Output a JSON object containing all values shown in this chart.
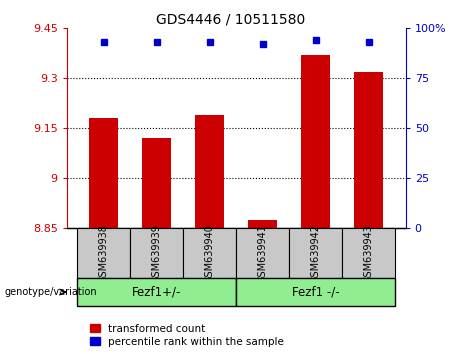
{
  "title": "GDS4446 / 10511580",
  "categories": [
    "GSM639938",
    "GSM639939",
    "GSM639940",
    "GSM639941",
    "GSM639942",
    "GSM639943"
  ],
  "red_values": [
    9.18,
    9.12,
    9.19,
    8.875,
    9.37,
    9.32
  ],
  "blue_values": [
    93,
    93,
    93,
    92,
    94,
    93
  ],
  "ylim_left": [
    8.85,
    9.45
  ],
  "ylim_right": [
    0,
    100
  ],
  "yticks_left": [
    8.85,
    9.0,
    9.15,
    9.3,
    9.45
  ],
  "yticks_right": [
    0,
    25,
    50,
    75,
    100
  ],
  "ytick_labels_left": [
    "8.85",
    "9",
    "9.15",
    "9.3",
    "9.45"
  ],
  "ytick_labels_right": [
    "0",
    "25",
    "50",
    "75",
    "100%"
  ],
  "grid_values": [
    9.0,
    9.15,
    9.3
  ],
  "bar_color": "#CC0000",
  "dot_color": "#0000CC",
  "bar_width": 0.55,
  "bg_xlabels": "#C8C8C8",
  "bg_groups": "#90EE90",
  "legend_red_label": "transformed count",
  "legend_blue_label": "percentile rank within the sample",
  "group_label": "genotype/variation",
  "groups": [
    {
      "label": "Fezf1+/-",
      "start": 0,
      "end": 2
    },
    {
      "label": "Fezf1 -/-",
      "start": 3,
      "end": 5
    }
  ]
}
